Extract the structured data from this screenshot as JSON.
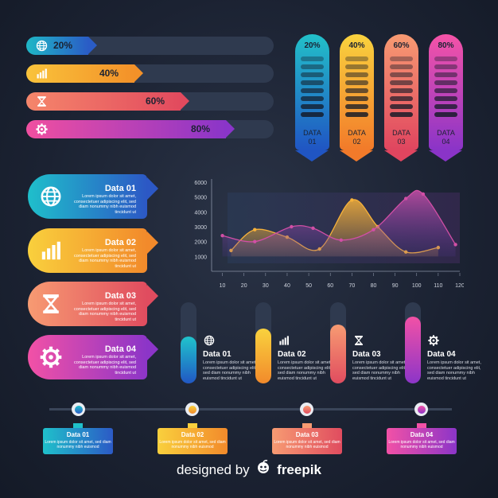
{
  "progress_bars": [
    {
      "label": "20%",
      "value": 0.2,
      "icon": "globe-icon",
      "color_from": "#1fb7c6",
      "color_to": "#2a5cc6"
    },
    {
      "label": "40%",
      "value": 0.4,
      "icon": "bar-chart-icon",
      "color_from": "#f9c33b",
      "color_to": "#f39129"
    },
    {
      "label": "60%",
      "value": 0.6,
      "icon": "hourglass-icon",
      "color_from": "#f5866b",
      "color_to": "#e24a5e"
    },
    {
      "label": "80%",
      "value": 0.8,
      "icon": "gear-icon",
      "color_from": "#f04fa0",
      "color_to": "#8a35c9"
    }
  ],
  "pills": [
    {
      "pct": "20%",
      "label": "DATA 01",
      "color_from": "#22c0c9",
      "color_to": "#2055c3"
    },
    {
      "pct": "40%",
      "label": "DATA 02",
      "color_from": "#f9d23e",
      "color_to": "#f27a2a"
    },
    {
      "pct": "60%",
      "label": "DATA 03",
      "color_from": "#f79a72",
      "color_to": "#e0455f"
    },
    {
      "pct": "80%",
      "label": "DATA 04",
      "color_from": "#f553a7",
      "color_to": "#8a34c8"
    }
  ],
  "cards": [
    {
      "title": "Data 01",
      "text": "Lorem ipsum dolor sit amet, consectetuer adipiscing elit, sed diam nonummy nibh euismod tincidunt ut",
      "icon": "globe-icon",
      "color_from": "#1fbfcb",
      "color_to": "#2c58c5"
    },
    {
      "title": "Data 02",
      "text": "Lorem ipsum dolor sit amet, consectetuer adipiscing elit, sed diam nonummy nibh euismod tincidunt ut",
      "icon": "bar-chart-icon",
      "color_from": "#f9d03d",
      "color_to": "#f28a2b"
    },
    {
      "title": "Data 03",
      "text": "Lorem ipsum dolor sit amet, consectetuer adipiscing elit, sed diam nonummy nibh euismod tincidunt ut",
      "icon": "hourglass-icon",
      "color_from": "#f79b72",
      "color_to": "#e04c5f"
    },
    {
      "title": "Data 04",
      "text": "Lorem ipsum dolor sit amet, consectetuer adipiscing elit, sed diam nonummy nibh euismod tincidunt ut",
      "icon": "gear-icon",
      "color_from": "#f251a6",
      "color_to": "#8c35c8"
    }
  ],
  "chart_data": {
    "type": "area",
    "x": [
      10,
      20,
      30,
      40,
      50,
      60,
      70,
      80,
      90,
      100,
      110,
      120
    ],
    "y_ticks": [
      0,
      1000,
      2000,
      3000,
      4000,
      5000,
      6000
    ],
    "x_ticks": [
      10,
      20,
      30,
      40,
      50,
      60,
      70,
      80,
      90,
      100,
      110,
      120
    ],
    "ylim": [
      0,
      6000
    ],
    "xlim": [
      5,
      120
    ],
    "series": [
      {
        "color": "#f7b23a",
        "x": [
          14,
          25,
          40,
          55,
          70,
          82,
          95,
          110
        ],
        "y": [
          1400,
          2800,
          2300,
          1500,
          4800,
          3000,
          1300,
          1600
        ]
      },
      {
        "color": "#d24fa6",
        "x": [
          10,
          25,
          42,
          52,
          65,
          80,
          95,
          103,
          118
        ],
        "y": [
          2400,
          2000,
          3000,
          2900,
          2100,
          2800,
          4900,
          5200,
          1800
        ]
      }
    ]
  },
  "thermometers": [
    {
      "title": "Data 01",
      "text": "Lorem ipsum dolor sit amet, consectetuer adipiscing elit, sed diam nonummy nibh euismod tincidunt ut",
      "level": 0.58,
      "icon": "globe-icon",
      "color_from": "#20c4cc",
      "color_to": "#2157c4"
    },
    {
      "title": "Data 02",
      "text": "Lorem ipsum dolor sit amet, consectetuer adipiscing elit, sed diam nonummy nibh euismod tincidunt ut",
      "level": 0.68,
      "icon": "bar-chart-icon",
      "color_from": "#f9d23e",
      "color_to": "#f28a2b"
    },
    {
      "title": "Data 03",
      "text": "Lorem ipsum dolor sit amet, consectetuer adipiscing elit, sed diam nonummy nibh euismod tincidunt ut",
      "level": 0.73,
      "icon": "hourglass-icon",
      "color_from": "#f79b72",
      "color_to": "#e04c5f"
    },
    {
      "title": "Data 04",
      "text": "Lorem ipsum dolor sit amet, consectetuer adipiscing elit, sed diam nonummy nibh euismod tincidunt ut",
      "level": 0.82,
      "icon": "gear-icon",
      "color_from": "#f251a6",
      "color_to": "#8c35c8"
    }
  ],
  "timeline": [
    {
      "title": "Data 01",
      "text": "Lorem ipsum dolor sit amet, sed diam nonummy nibh euismod",
      "color_from": "#1fc0ca",
      "color_to": "#2c5ac6"
    },
    {
      "title": "Data 02",
      "text": "Lorem ipsum dolor sit amet, sed diam nonummy nibh euismod",
      "color_from": "#f9d03d",
      "color_to": "#f28a2b"
    },
    {
      "title": "Data 03",
      "text": "Lorem ipsum dolor sit amet, sed diam nonummy nibh euismod",
      "color_from": "#f79b72",
      "color_to": "#e04c5f"
    },
    {
      "title": "Data 04",
      "text": "Lorem ipsum dolor sit amet, sed diam nonummy nibh euismod",
      "color_from": "#f251a6",
      "color_to": "#8c35c8"
    }
  ],
  "credit": {
    "prefix": "designed by",
    "brand": "freepik"
  }
}
